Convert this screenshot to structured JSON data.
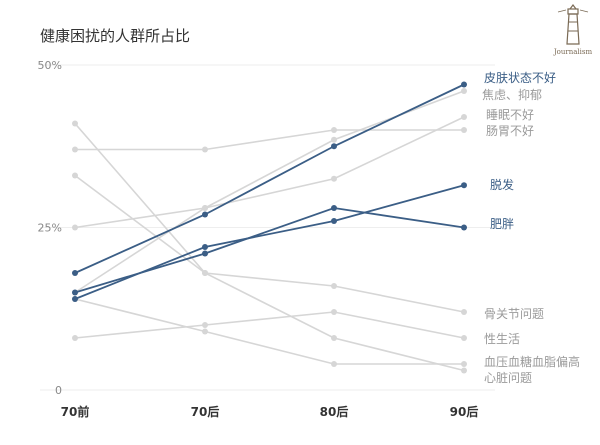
{
  "title": "健康困扰的人群所占比",
  "logo": {
    "text": "Journalism"
  },
  "colors": {
    "highlight": "#3b5e86",
    "muted": "#d6d6d6",
    "muted_label": "#9a9a9a"
  },
  "chart_data": {
    "type": "line",
    "title": "健康困扰的人群所占比",
    "categories": [
      "70前",
      "70后",
      "80后",
      "90后"
    ],
    "y_ticks": [
      "0",
      "25%",
      "50%"
    ],
    "ylim": [
      0,
      50
    ],
    "grid": true,
    "series": [
      {
        "name": "皮肤状态不好",
        "values": [
          18,
          27,
          37.5,
          47
        ],
        "highlight": true
      },
      {
        "name": "焦虑、抑郁",
        "values": [
          15,
          28,
          38.5,
          46
        ],
        "highlight": false
      },
      {
        "name": "睡眠不好",
        "values": [
          25,
          28,
          32.5,
          42
        ],
        "highlight": false
      },
      {
        "name": "肠胃不好",
        "values": [
          37,
          37,
          40,
          40
        ],
        "highlight": false
      },
      {
        "name": "脱发",
        "values": [
          14,
          22,
          26,
          31.5
        ],
        "highlight": true
      },
      {
        "name": "肥胖",
        "values": [
          15,
          21,
          28,
          25
        ],
        "highlight": true
      },
      {
        "name": "骨关节问题",
        "values": [
          41,
          18,
          16,
          12
        ],
        "highlight": false
      },
      {
        "name": "性生活",
        "values": [
          8,
          10,
          12,
          8
        ],
        "highlight": false
      },
      {
        "name": "血压血糖血脂偏高",
        "values": [
          14,
          9,
          4,
          4
        ],
        "highlight": false
      },
      {
        "name": "心脏问题",
        "values": [
          33,
          18,
          8,
          3
        ],
        "highlight": false
      }
    ]
  }
}
